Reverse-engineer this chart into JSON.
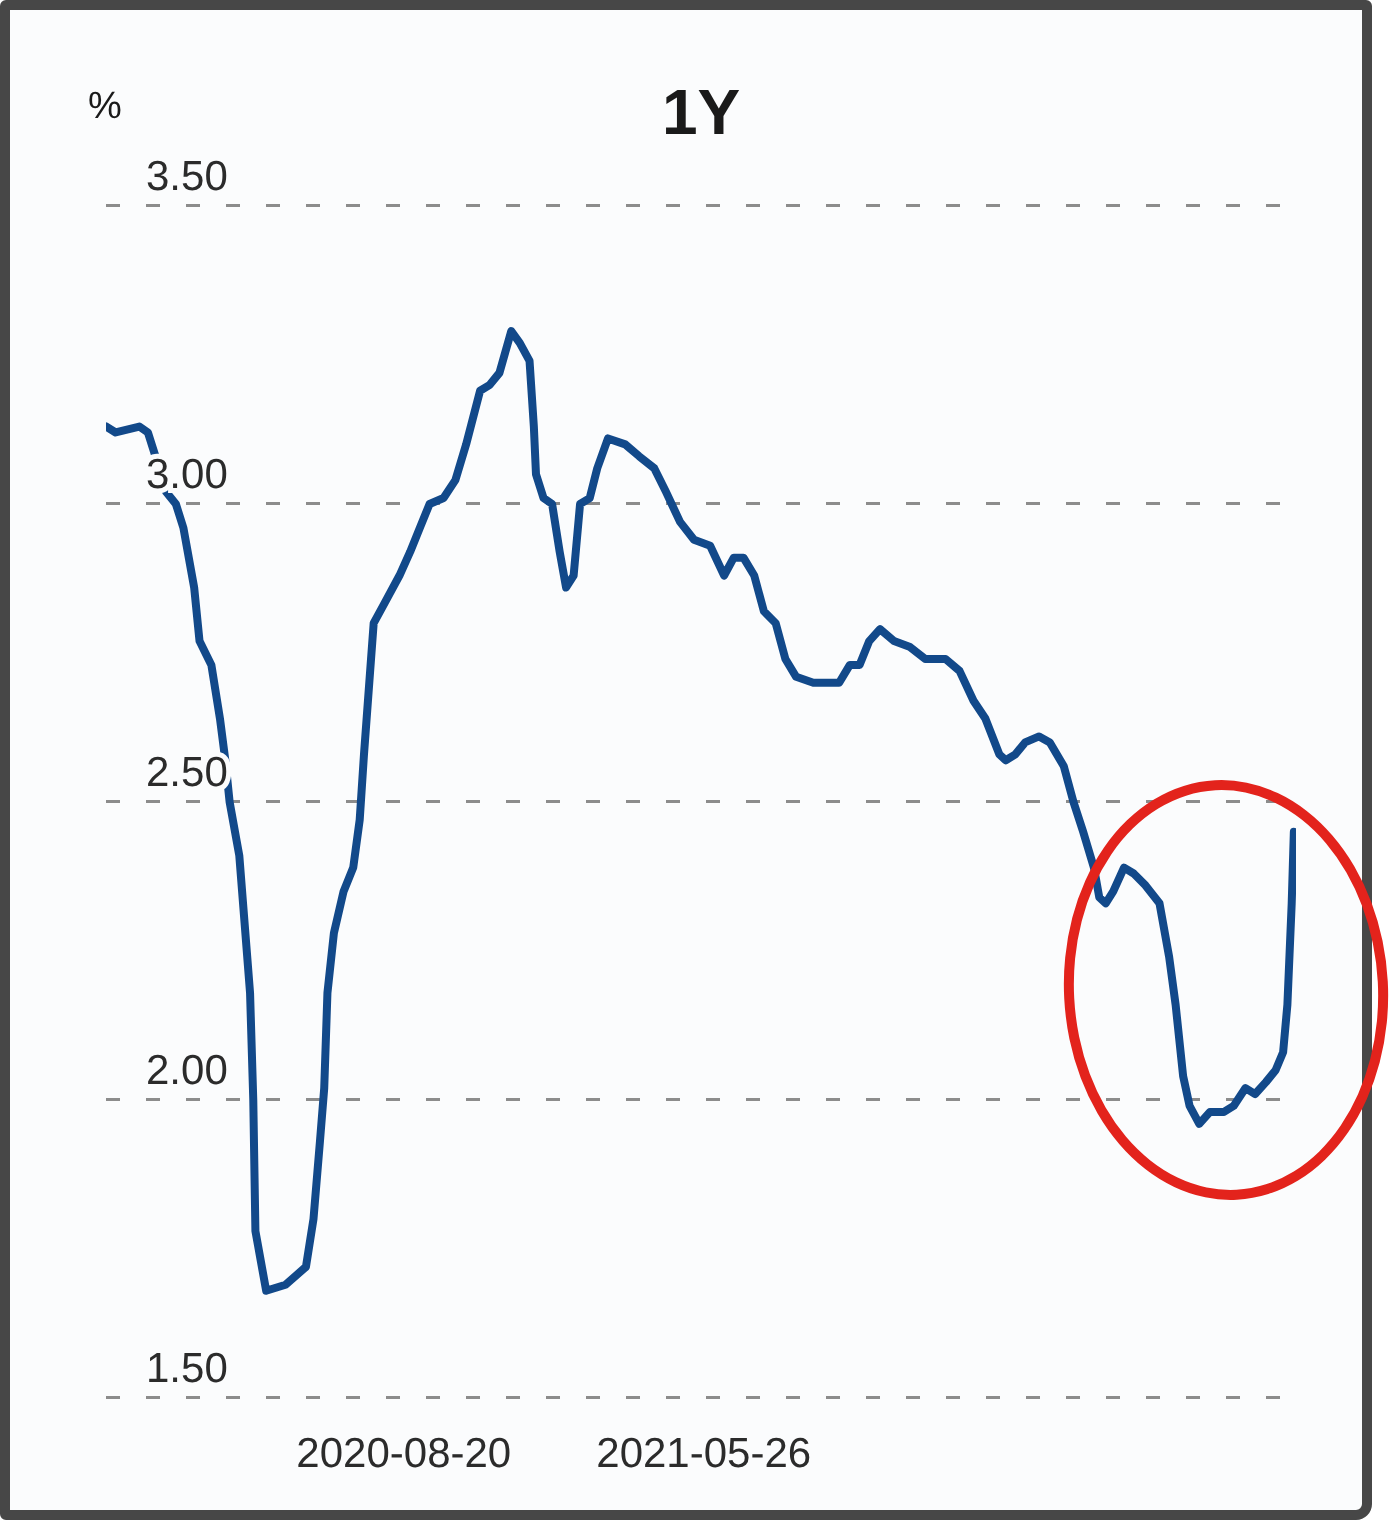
{
  "chart_data": {
    "type": "line",
    "title": "1Y",
    "ylabel": "%",
    "x": [
      "2019-11-17",
      "2019-11-26",
      "2019-12-18",
      "2019-12-26",
      "2020-01-02",
      "2020-01-12",
      "2020-01-21",
      "2020-01-28",
      "2020-02-07",
      "2020-02-12",
      "2020-02-23",
      "2020-03-02",
      "2020-03-07",
      "2020-03-11",
      "2020-03-20",
      "2020-03-30",
      "2020-04-02",
      "2020-04-04",
      "2020-04-14",
      "2020-05-02",
      "2020-05-21",
      "2020-05-28",
      "2020-06-03",
      "2020-06-07",
      "2020-06-10",
      "2020-06-16",
      "2020-06-25",
      "2020-07-04",
      "2020-07-10",
      "2020-07-14",
      "2020-07-23",
      "2020-08-01",
      "2020-08-16",
      "2020-08-26",
      "2020-09-04",
      "2020-09-13",
      "2020-09-26",
      "2020-10-07",
      "2020-10-17",
      "2020-10-30",
      "2020-11-08",
      "2020-11-17",
      "2020-11-28",
      "2020-12-06",
      "2020-12-15",
      "2020-12-19",
      "2020-12-21",
      "2020-12-28",
      "2021-01-05",
      "2021-01-12",
      "2021-01-18",
      "2021-01-25",
      "2021-01-31",
      "2021-02-09",
      "2021-02-16",
      "2021-02-26",
      "2021-03-14",
      "2021-03-27",
      "2021-04-10",
      "2021-04-21",
      "2021-05-04",
      "2021-05-17",
      "2021-06-01",
      "2021-06-14",
      "2021-06-23",
      "2021-07-02",
      "2021-07-12",
      "2021-07-21",
      "2021-08-01",
      "2021-08-10",
      "2021-08-20",
      "2021-09-05",
      "2021-09-29",
      "2021-10-09",
      "2021-10-18",
      "2021-10-27",
      "2021-11-06",
      "2021-11-19",
      "2021-12-04",
      "2021-12-18",
      "2022-01-06",
      "2022-01-19",
      "2022-02-01",
      "2022-02-12",
      "2022-02-25",
      "2022-03-03",
      "2022-03-12",
      "2022-03-21",
      "2022-04-03",
      "2022-04-13",
      "2022-04-26",
      "2022-05-05",
      "2022-05-14",
      "2022-05-24",
      "2022-05-29",
      "2022-06-04",
      "2022-06-11",
      "2022-06-21",
      "2022-06-30",
      "2022-07-11",
      "2022-07-24",
      "2022-08-02",
      "2022-08-08",
      "2022-08-15",
      "2022-08-21",
      "2022-08-30",
      "2022-09-09",
      "2022-09-22",
      "2022-10-01",
      "2022-10-12",
      "2022-10-21",
      "2022-10-31",
      "2022-11-09",
      "2022-11-16",
      "2022-11-20",
      "2022-11-24",
      "2022-11-26"
    ],
    "values": [
      3.13,
      3.12,
      3.13,
      3.12,
      3.08,
      3.02,
      3.0,
      2.96,
      2.86,
      2.77,
      2.73,
      2.64,
      2.57,
      2.5,
      2.41,
      2.18,
      2.0,
      1.78,
      1.68,
      1.69,
      1.72,
      1.8,
      1.93,
      2.02,
      2.18,
      2.28,
      2.35,
      2.39,
      2.47,
      2.58,
      2.8,
      2.83,
      2.88,
      2.92,
      2.96,
      3.0,
      3.01,
      3.04,
      3.1,
      3.19,
      3.2,
      3.22,
      3.29,
      3.27,
      3.24,
      3.13,
      3.05,
      3.01,
      3.0,
      2.92,
      2.86,
      2.88,
      3.0,
      3.01,
      3.06,
      3.11,
      3.1,
      3.08,
      3.06,
      3.02,
      2.97,
      2.94,
      2.93,
      2.88,
      2.91,
      2.91,
      2.88,
      2.82,
      2.8,
      2.74,
      2.71,
      2.7,
      2.7,
      2.73,
      2.73,
      2.77,
      2.79,
      2.77,
      2.76,
      2.74,
      2.74,
      2.72,
      2.67,
      2.64,
      2.58,
      2.57,
      2.58,
      2.6,
      2.61,
      2.6,
      2.56,
      2.5,
      2.45,
      2.39,
      2.34,
      2.33,
      2.35,
      2.39,
      2.38,
      2.36,
      2.33,
      2.24,
      2.16,
      2.04,
      1.99,
      1.96,
      1.98,
      1.98,
      1.99,
      2.02,
      2.01,
      2.03,
      2.05,
      2.08,
      2.16,
      2.33,
      2.45
    ],
    "color": "#12498a",
    "xlim": [
      "2019-11-17",
      "2022-11-28"
    ],
    "xticks": [
      "2020-08-20",
      "2021-05-26"
    ],
    "ylim": [
      1.5,
      3.5
    ],
    "yticks": [
      {
        "value": 1.5,
        "label": "1.50"
      },
      {
        "value": 2.0,
        "label": "2.00"
      },
      {
        "value": 2.5,
        "label": "2.50"
      },
      {
        "value": 3.0,
        "label": "3.00"
      },
      {
        "value": 3.5,
        "label": "3.50"
      }
    ],
    "grid": "y",
    "marker": "none",
    "line_style": "solid"
  }
}
